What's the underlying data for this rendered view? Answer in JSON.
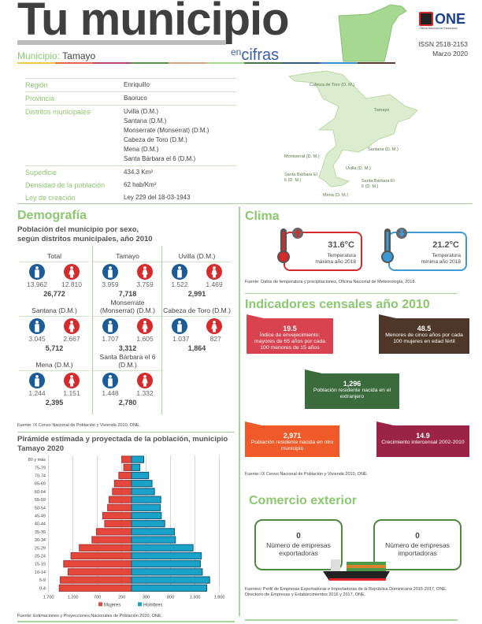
{
  "header": {
    "title": "Tu municipio",
    "en": "en",
    "cifras": "cifras",
    "municipio_label": "Municipio:",
    "municipio": "Tamayo",
    "issn": "ISSN  2518-2153",
    "date": "Marzo 2020",
    "logo_text": "ONE",
    "logo_sub": "Oficina Nacional de Estadística",
    "colorline": [
      "#f2c94c",
      "#e8694a",
      "#b8476a",
      "#5e8f4f",
      "#d6a48a",
      "#a8d69a",
      "#4a7a48",
      "#355a8a",
      "#3d8fcf",
      "#5a4030"
    ]
  },
  "info": {
    "rows": [
      {
        "label": "Región",
        "values": [
          "Enriquillo"
        ]
      },
      {
        "label": "Provincia",
        "values": [
          "Baoruco"
        ]
      },
      {
        "label": "Distritos municipales",
        "values": [
          "Uvilla (D.M.)",
          "Santana (D.M.)",
          "Monserrate (Monserrat) (D.M.)",
          "Cabeza de Toro (D.M.)",
          "Mena (D.M.)",
          "Santa Bárbara el 6 (D.M.)"
        ]
      },
      {
        "label": "Superficie",
        "values": [
          "434.3 Km²"
        ]
      },
      {
        "label": "Densidad de la población",
        "values": [
          "62 hab/Km²"
        ]
      },
      {
        "label": "Ley de creación",
        "values": [
          "Ley 229 del 18-03-1943"
        ]
      }
    ]
  },
  "map": {
    "labels": [
      "Cabeza de Toro (D. M.)",
      "Tamayo",
      "Santana (D. M.)",
      "Montserrat (D. M.)",
      "Uvilla (D. M.)",
      "Santa Bárbara El 6 (D. M.)",
      "Santa Bárbara El 6 (D. M.)",
      "Mena (D. M.)"
    ]
  },
  "demografia": {
    "title": "Demografía",
    "subtitle1": "Población del municipio por sexo,",
    "subtitle2": "según distritos municipales, año 2010",
    "cells": [
      {
        "name": "Total",
        "hombres": "13.962",
        "mujeres": "12.810",
        "total": "26,772"
      },
      {
        "name": "Tamayo",
        "hombres": "3.959",
        "mujeres": "3.759",
        "total": "7,718"
      },
      {
        "name": "Uvilla (D.M.)",
        "hombres": "1.522",
        "mujeres": "1.469",
        "total": "2,991"
      },
      {
        "name": "Santana (D.M.)",
        "hombres": "3.045",
        "mujeres": "2.667",
        "total": "5,712"
      },
      {
        "name": "Monserrate (Monserrat) (D.M.)",
        "hombres": "1.707",
        "mujeres": "1.605",
        "total": "3,312"
      },
      {
        "name": "Cabeza de Toro (D.M.)",
        "hombres": "1.037",
        "mujeres": "827",
        "total": "1,864"
      },
      {
        "name": "Mena (D.M.)",
        "hombres": "1.244",
        "mujeres": "1.151",
        "total": "2,395"
      },
      {
        "name": "Santa Bárbara el 6 (D.M.)",
        "hombres": "1.448",
        "mujeres": "1.332",
        "total": "2,780"
      }
    ],
    "source": "Fuente: IX Censo Nacional de Población y Vivienda 2010, ONE."
  },
  "chart_data": {
    "type": "bar",
    "orientation": "horizontal-pyramid",
    "title": "Pirámide estimada y proyectada de la población, municipio Tamayo 2020",
    "categories": [
      "80 y más",
      "75-79",
      "70-74",
      "65-69",
      "60-64",
      "55-59",
      "50-54",
      "45-49",
      "40-44",
      "35-39",
      "30-34",
      "25-29",
      "20-24",
      "15-19",
      "10-14",
      "5-9",
      "0-4"
    ],
    "series": [
      {
        "name": "Mujeres",
        "color": "#e5473a",
        "values": [
          200,
          160,
          260,
          350,
          390,
          460,
          490,
          590,
          550,
          720,
          810,
          1070,
          1240,
          1390,
          1300,
          1460,
          1480
        ]
      },
      {
        "name": "Hombres",
        "color": "#1aa3c8",
        "values": [
          250,
          170,
          350,
          420,
          470,
          600,
          590,
          610,
          680,
          880,
          900,
          1260,
          1430,
          1410,
          1450,
          1600,
          1540
        ]
      }
    ],
    "xticks": [
      -1700,
      -1200,
      -700,
      -200,
      300,
      800,
      1300,
      1800
    ],
    "xtick_labels": [
      "1.700",
      "1.200",
      "700",
      "200",
      "300",
      "800",
      "1.300",
      "1.800"
    ],
    "xlim": [
      -1700,
      1800
    ],
    "grid": true,
    "legend": "bottom",
    "source": "Fuente: Estimaciones y Proyecciones Nacionales de Población 2020, ONE."
  },
  "clima": {
    "title": "Clima",
    "max": {
      "value": "31.6°C",
      "l1": "Temperatura",
      "l2": "máxima año 2018",
      "color": "#d52b2d"
    },
    "min": {
      "value": "21.2°C",
      "l1": "Temperatura",
      "l2": "mínima año 2018",
      "color": "#3d9ad6"
    },
    "source": "Fuente: Datos de temperatura y precipitaciones, Oficina Nacional de Meteorología, 2018."
  },
  "indicadores": {
    "title": "Indicadores censales año 2010",
    "items": [
      {
        "value": "19.5",
        "text": "Índice de envejecimiento: mayores de 65 años por cada 100 menores de 15 años",
        "color": "#d8434f"
      },
      {
        "value": "48.5",
        "text": "Menores de cinco años por cada 100 mujeres en edad fértil",
        "color": "#4e3729"
      },
      {
        "value": "1,296",
        "text": "Población residente nacida en el extranjero",
        "color": "#3b6a3c"
      },
      {
        "value": "2,971",
        "text": "Población residente nacida en otro municipio",
        "color": "#f05a28"
      },
      {
        "value": "14.9",
        "text": "Crecimiento intercensal 2002-2010",
        "color": "#9b2345"
      }
    ],
    "source": "Fuente: IX Censo Nacional de Población y Vivienda 2010, ONE."
  },
  "comercio": {
    "title": "Comercio exterior",
    "exp": {
      "value": "0",
      "text": "Número de empresas exportadoras"
    },
    "imp": {
      "value": "0",
      "text": "Número de empresas importadoras"
    },
    "source1": "Fuentes: Perfil de Empresas Exportadoras e Importadoras de la República Dominicana 2015-2017, ONE.",
    "source2": "Directorio de Empresas y Establecimientos 2016 y 2017, ONE."
  }
}
